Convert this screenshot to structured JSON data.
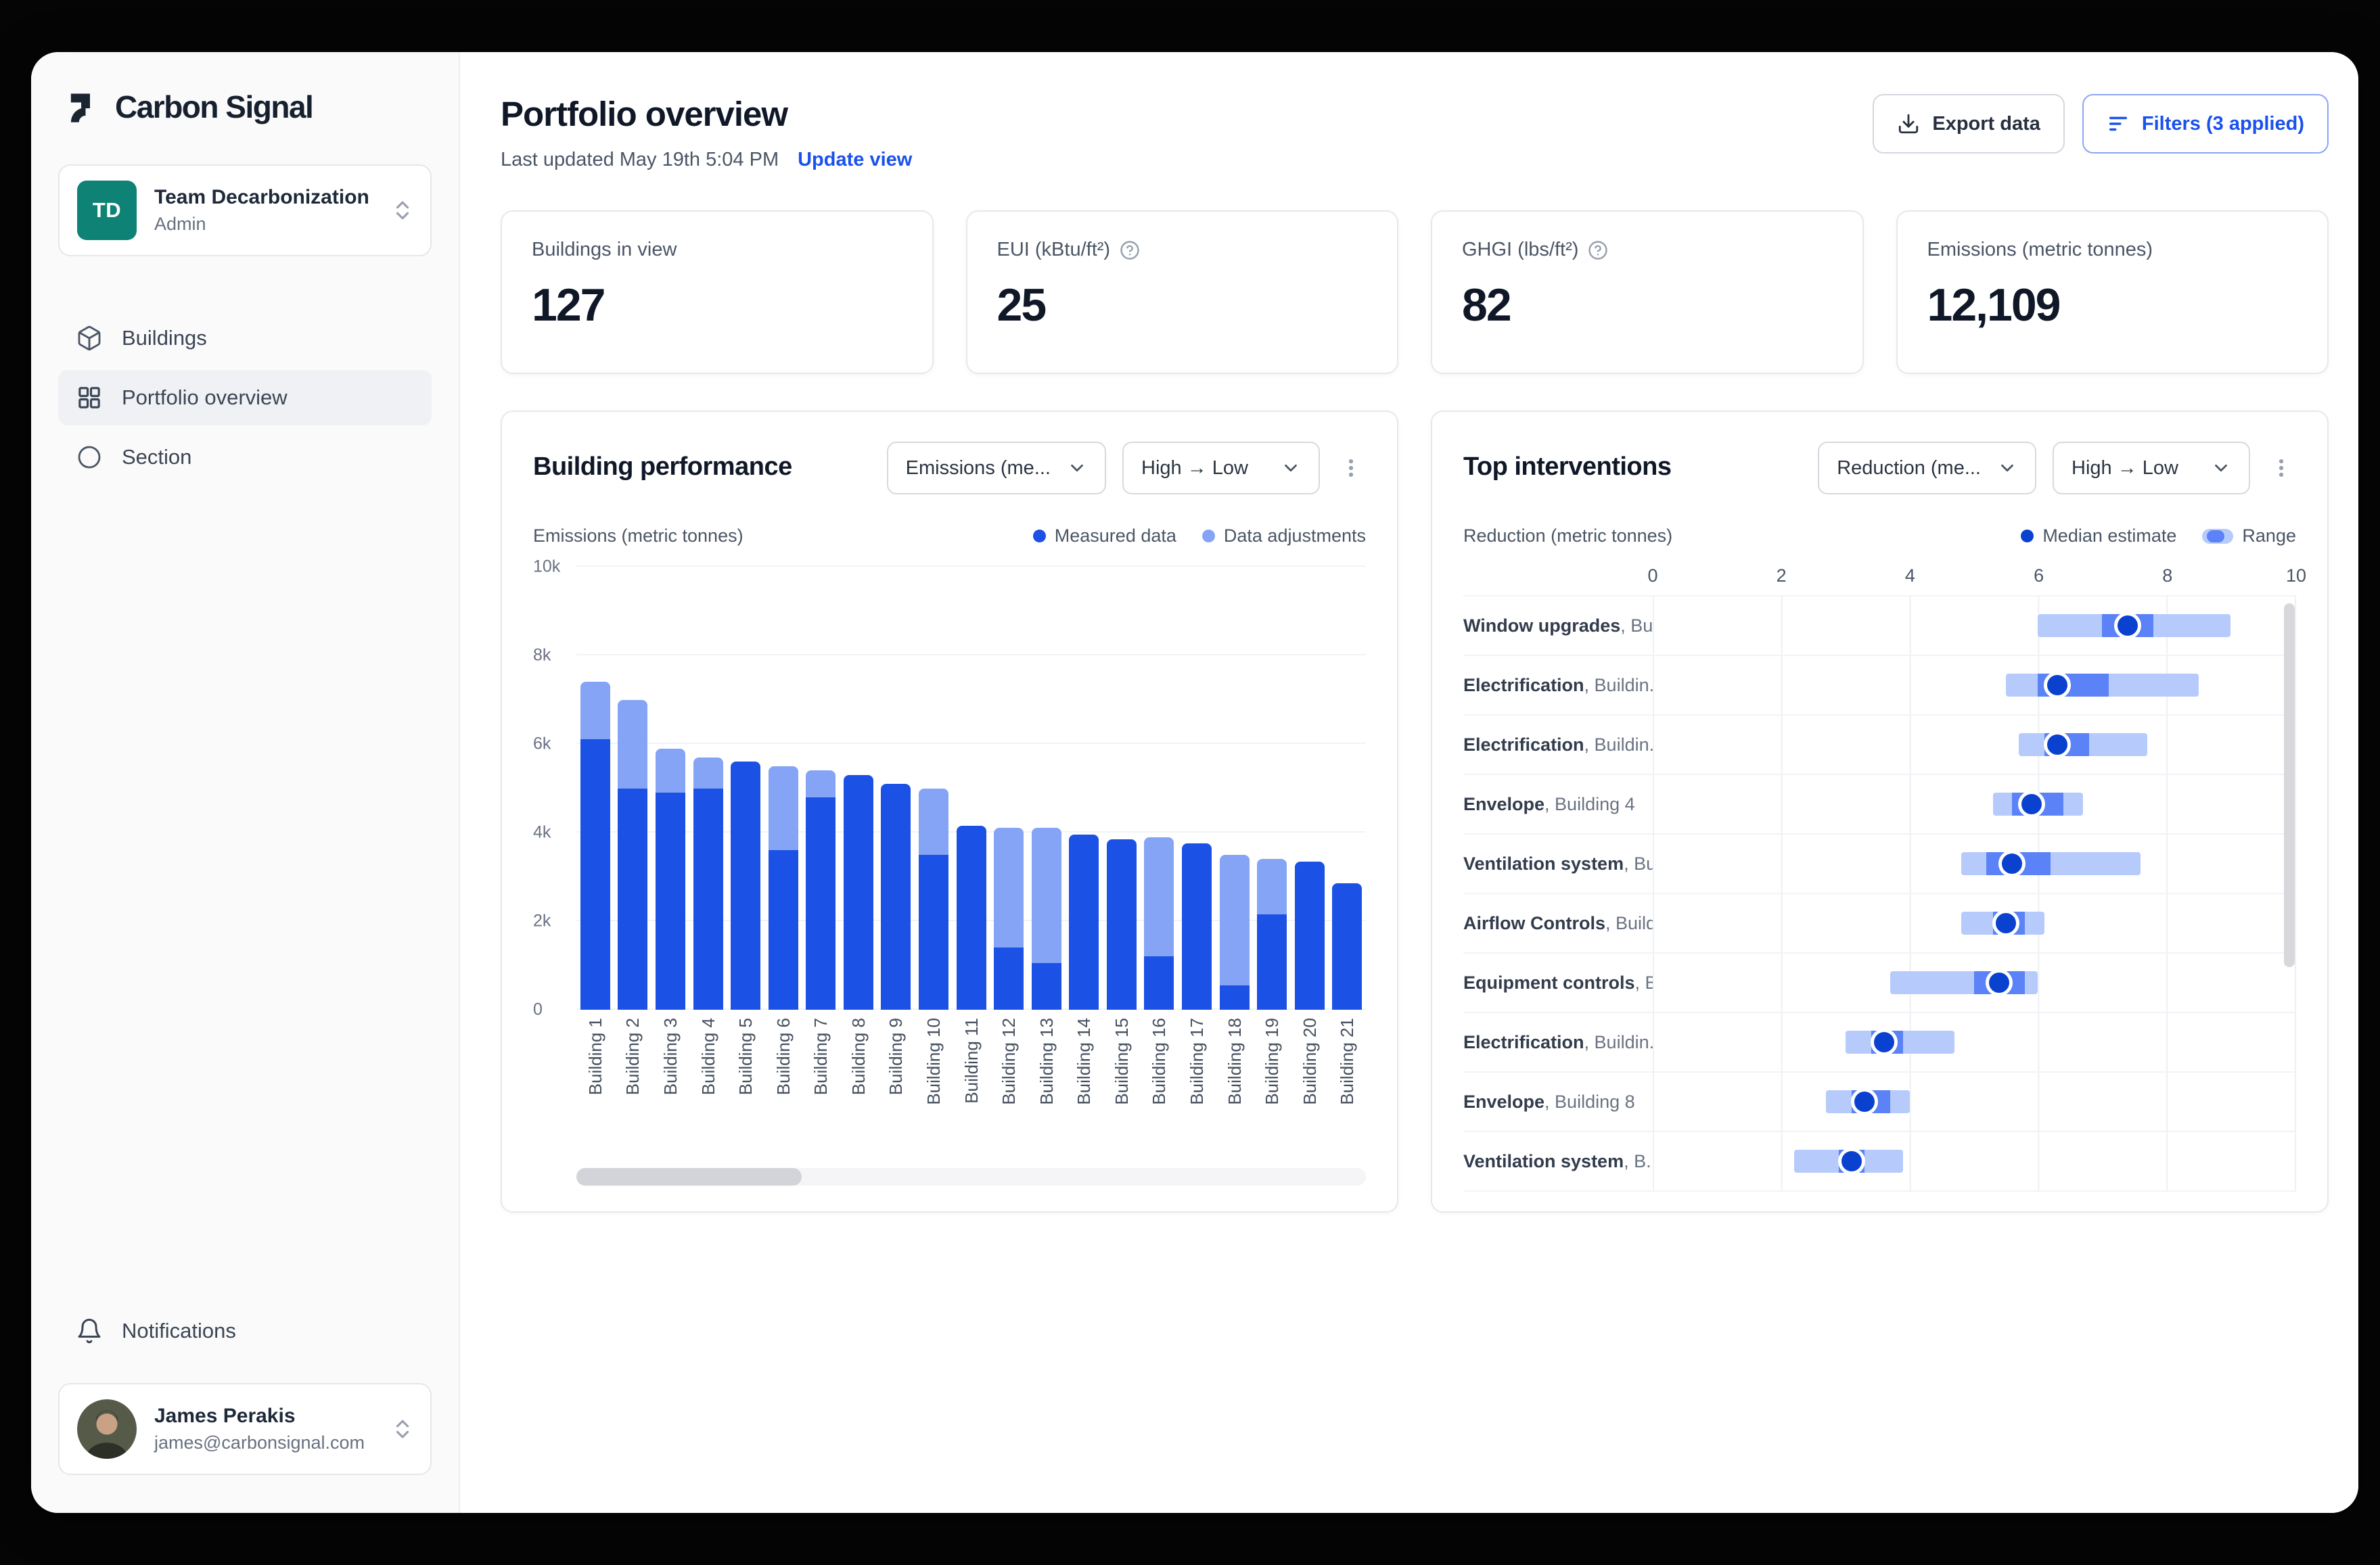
{
  "app": {
    "name": "Carbon Signal"
  },
  "sidebar": {
    "team": {
      "initials": "TD",
      "name": "Team Decarbonization",
      "role": "Admin"
    },
    "nav": [
      {
        "label": "Buildings"
      },
      {
        "label": "Portfolio overview",
        "active": true
      },
      {
        "label": "Section"
      }
    ],
    "notifications_label": "Notifications",
    "user": {
      "name": "James Perakis",
      "email": "james@carbonsignal.com"
    }
  },
  "header": {
    "title": "Portfolio overview",
    "last_updated": "Last updated May 19th 5:04 PM",
    "update_view_label": "Update view",
    "export_label": "Export data",
    "filters_label": "Filters (3 applied)"
  },
  "stats": [
    {
      "label": "Buildings in view",
      "value": "127"
    },
    {
      "label": "EUI (kBtu/ft²)",
      "value": "25",
      "has_help": true
    },
    {
      "label": "GHGI (lbs/ft²)",
      "value": "82",
      "has_help": true
    },
    {
      "label": "Emissions (metric tonnes)",
      "value": "12,109"
    }
  ],
  "panels": {
    "building_performance": {
      "title": "Building performance",
      "metric_dropdown": "Emissions (me...",
      "sort_dropdown": "High → Low",
      "axis_label": "Emissions (metric tonnes)",
      "legend": [
        {
          "label": "Measured data"
        },
        {
          "label": "Data adjustments"
        }
      ]
    },
    "top_interventions": {
      "title": "Top interventions",
      "metric_dropdown": "Reduction (me...",
      "sort_dropdown": "High → Low",
      "axis_label": "Reduction (metric tonnes)",
      "legend_median": "Median estimate",
      "legend_range": "Range",
      "label_separator": ", "
    }
  },
  "colors": {
    "accent_blue": "#1a51ec",
    "measured": "#1b51e4",
    "adjustments": "#85a4f5",
    "range_light": "#b6cafb",
    "range_inner": "#5b82f6",
    "median_dot": "#0a42cf",
    "team_avatar_teal": "#0e8274"
  },
  "chart_data": [
    {
      "type": "bar",
      "title": "Building performance",
      "ylabel": "Emissions (metric tonnes)",
      "stacked": true,
      "grid": "horizontal",
      "ylim": [
        0,
        10000
      ],
      "yticks": [
        "0",
        "2k",
        "4k",
        "6k",
        "8k",
        "10k"
      ],
      "categories": [
        "Building 1",
        "Building 2",
        "Building 3",
        "Building 4",
        "Building 5",
        "Building 6",
        "Building 7",
        "Building 8",
        "Building 9",
        "Building 10",
        "Building 11",
        "Building 12",
        "Building 13",
        "Building 14",
        "Building 15",
        "Building 16",
        "Building 17",
        "Building 18",
        "Building 19",
        "Building 20",
        "Building 21"
      ],
      "series": [
        {
          "name": "Measured data",
          "color": "#1b51e4",
          "values": [
            6100,
            5000,
            4900,
            5000,
            5600,
            3600,
            4800,
            5300,
            5100,
            3500,
            4150,
            1400,
            1050,
            3950,
            3850,
            1200,
            3750,
            550,
            2150,
            3350,
            2850
          ]
        },
        {
          "name": "Data adjustments",
          "color": "#85a4f5",
          "values": [
            1300,
            2000,
            1000,
            700,
            0,
            1900,
            600,
            0,
            0,
            1500,
            0,
            2700,
            3050,
            0,
            0,
            2700,
            0,
            2950,
            1250,
            0,
            0
          ]
        }
      ]
    },
    {
      "type": "range_dot",
      "title": "Top interventions",
      "xlabel": "Reduction (metric tonnes)",
      "xlim": [
        0,
        10
      ],
      "xticks": [
        0,
        2,
        4,
        6,
        8,
        10
      ],
      "legend_position": "top-right",
      "colors": {
        "range": "#b6cafb",
        "inner": "#5b82f6",
        "median": "#0a42cf"
      },
      "rows": [
        {
          "intervention": "Window upgrades",
          "building": "Bui...",
          "range": [
            6.0,
            9.0
          ],
          "inner": [
            7.0,
            7.8
          ],
          "median": 7.4
        },
        {
          "intervention": "Electrification",
          "building": "Buildin...",
          "range": [
            5.5,
            8.5
          ],
          "inner": [
            6.0,
            7.1
          ],
          "median": 6.3
        },
        {
          "intervention": "Electrification",
          "building": "Buildin...",
          "range": [
            5.7,
            7.7
          ],
          "inner": [
            6.1,
            6.8
          ],
          "median": 6.3
        },
        {
          "intervention": "Envelope",
          "building": "Building 4",
          "range": [
            5.3,
            6.7
          ],
          "inner": [
            5.6,
            6.4
          ],
          "median": 5.9
        },
        {
          "intervention": "Ventilation system",
          "building": "Bu...",
          "range": [
            4.8,
            7.6
          ],
          "inner": [
            5.2,
            6.2
          ],
          "median": 5.6
        },
        {
          "intervention": "Airflow Controls",
          "building": "Build...",
          "range": [
            4.8,
            6.1
          ],
          "inner": [
            5.3,
            5.8
          ],
          "median": 5.5
        },
        {
          "intervention": "Equipment controls",
          "building": "B...",
          "range": [
            3.7,
            6.0
          ],
          "inner": [
            5.0,
            5.8
          ],
          "median": 5.4
        },
        {
          "intervention": "Electrification",
          "building": "Buildin...",
          "range": [
            3.0,
            4.7
          ],
          "inner": [
            3.4,
            3.9
          ],
          "median": 3.6
        },
        {
          "intervention": "Envelope",
          "building": "Building 8",
          "range": [
            2.7,
            4.0
          ],
          "inner": [
            3.1,
            3.7
          ],
          "median": 3.3
        },
        {
          "intervention": "Ventilation system",
          "building": "B...",
          "range": [
            2.2,
            3.9
          ],
          "inner": [
            2.9,
            3.3
          ],
          "median": 3.1
        }
      ]
    }
  ]
}
